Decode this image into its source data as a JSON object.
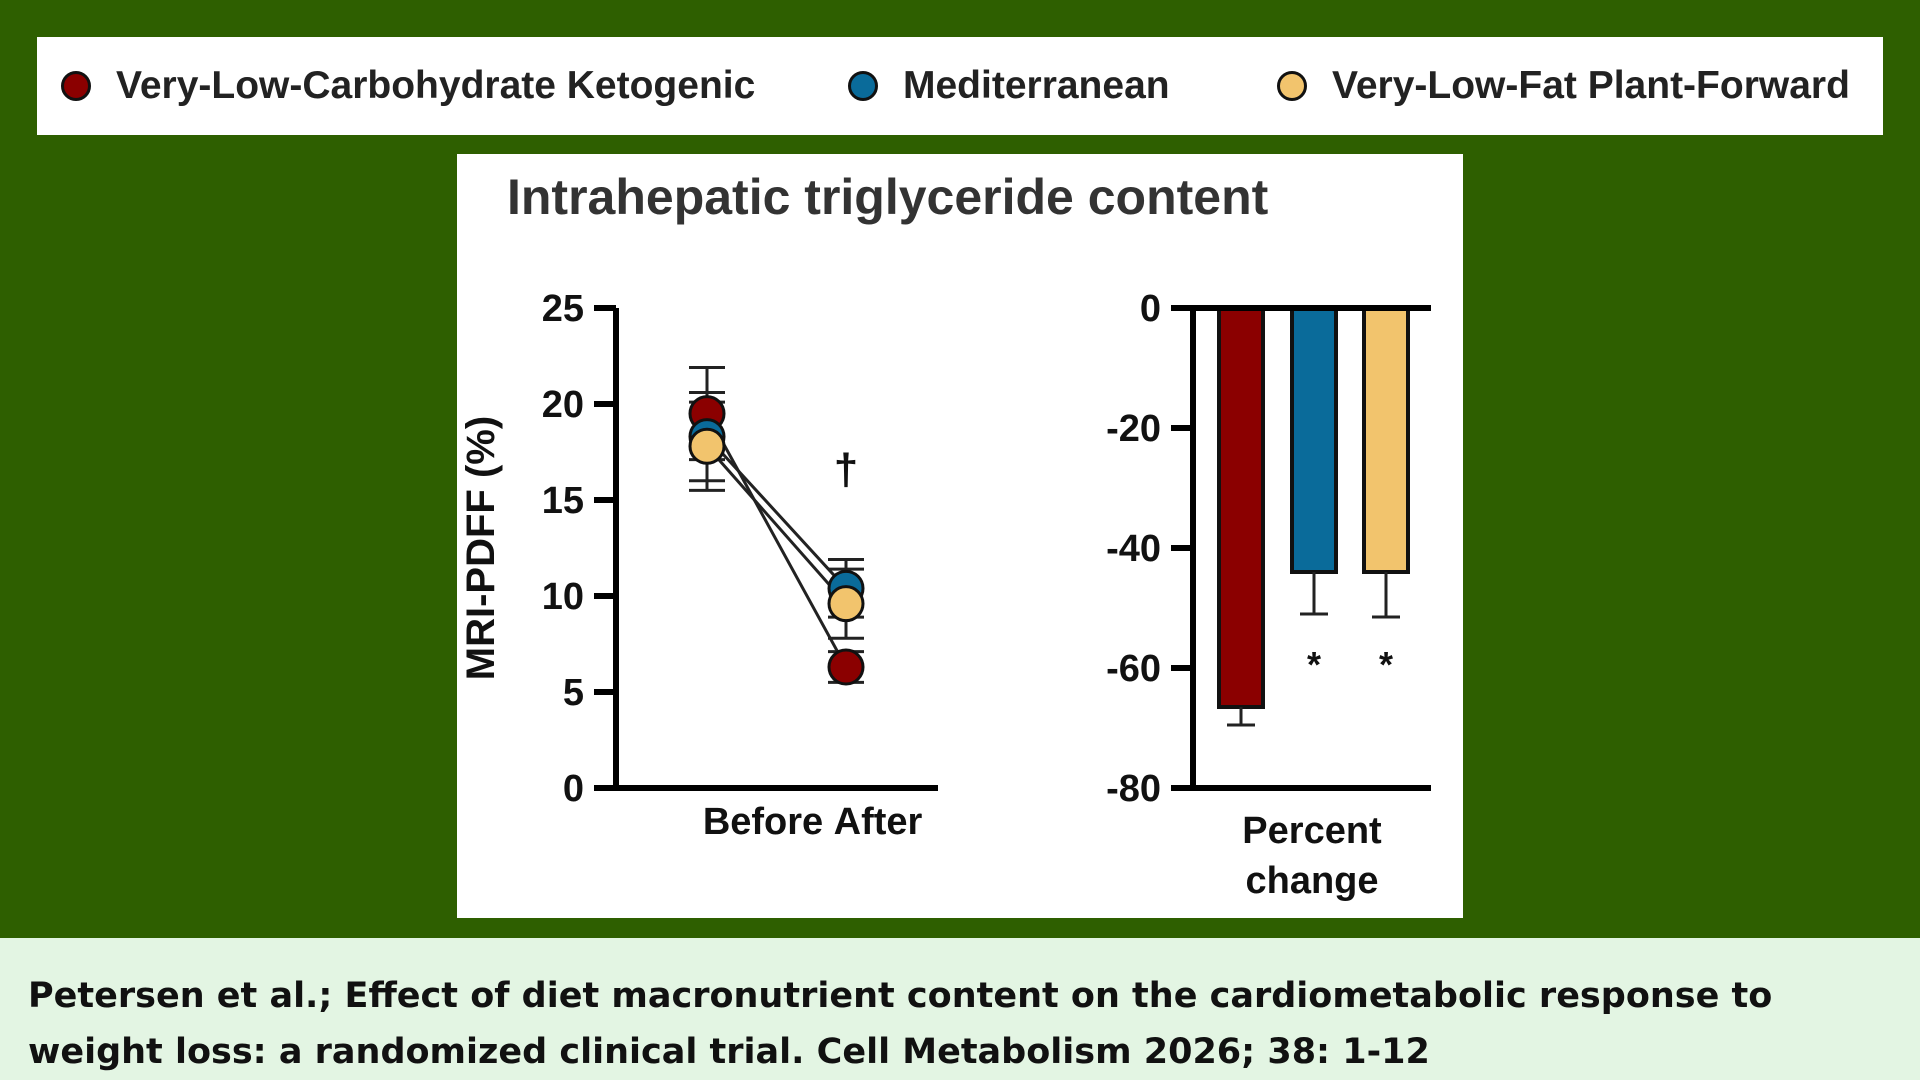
{
  "legend": {
    "items": [
      {
        "label": "Very-Low-Carbohydrate Ketogenic",
        "color": "#8b0000"
      },
      {
        "label": "Mediterranean",
        "color": "#0a6b9a"
      },
      {
        "label": "Very-Low-Fat Plant-Forward",
        "color": "#f2c46d"
      }
    ]
  },
  "chart_data": [
    {
      "type": "line",
      "title": "Intrahepatic triglyceride content",
      "ylabel": "MRI-PDFF (%)",
      "xlabel": "",
      "categories": [
        "Before",
        "After"
      ],
      "ylim": [
        0,
        25
      ],
      "yticks": [
        "0",
        "5",
        "10",
        "15",
        "20",
        "25"
      ],
      "series": [
        {
          "name": "Very-Low-Carbohydrate Ketogenic",
          "values": [
            19.5,
            6.3
          ],
          "error": [
            2.4,
            0.8
          ],
          "color": "#8b0000"
        },
        {
          "name": "Mediterranean",
          "values": [
            18.3,
            10.4
          ],
          "error": [
            2.3,
            1.5
          ],
          "color": "#0a6b9a"
        },
        {
          "name": "Very-Low-Fat Plant-Forward",
          "values": [
            17.8,
            9.6
          ],
          "error": [
            2.3,
            1.8
          ],
          "color": "#f2c46d"
        }
      ],
      "annotations": [
        {
          "category": "After",
          "text": "†"
        }
      ]
    },
    {
      "type": "bar",
      "xlabel": "Percent change",
      "ylim": [
        -80,
        0
      ],
      "yticks": [
        "0",
        "-20",
        "-40",
        "-60",
        "-80"
      ],
      "series": [
        {
          "name": "Very-Low-Carbohydrate Ketogenic",
          "value": -66.5,
          "error": 3,
          "color": "#8b0000",
          "annotation": ""
        },
        {
          "name": "Mediterranean",
          "value": -44,
          "error": 7,
          "color": "#0a6b9a",
          "annotation": "*"
        },
        {
          "name": "Very-Low-Fat Plant-Forward",
          "value": -44,
          "error": 7.5,
          "color": "#f2c46d",
          "annotation": "*"
        }
      ]
    }
  ],
  "footer": {
    "citation": "Petersen et al.; Effect of diet macronutrient content on the cardiometabolic response to weight loss: a randomized clinical trial. Cell Metabolism 2026; 38: 1-12"
  }
}
